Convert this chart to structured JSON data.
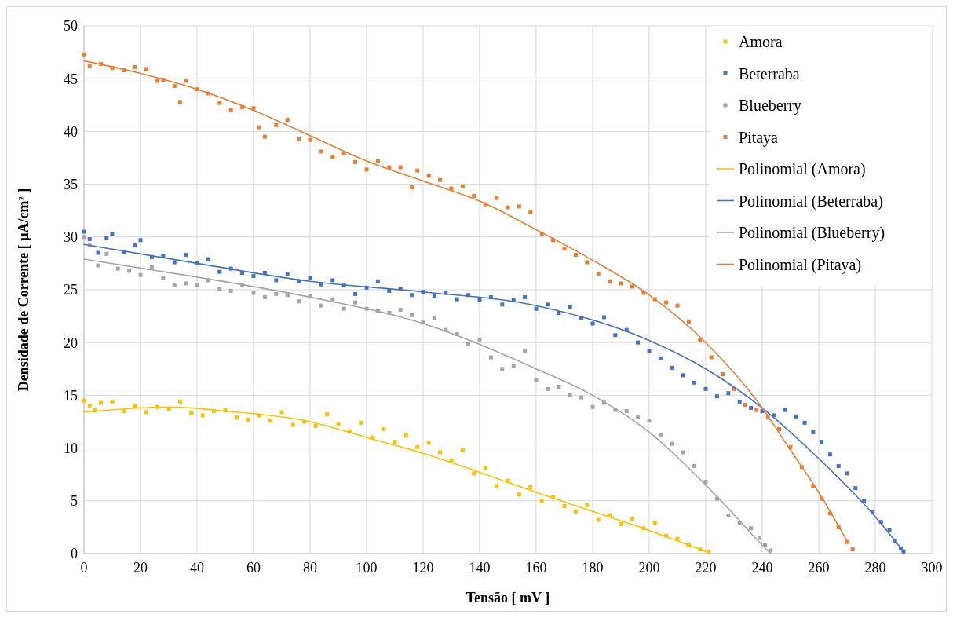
{
  "chart_data": {
    "type": "scatter",
    "xlabel": "Tensão [ mV ]",
    "ylabel": "Densidade de Corrente [ μA/cm² ]",
    "xlim": [
      0,
      300
    ],
    "ylim": [
      0,
      50
    ],
    "xticks": [
      0,
      20,
      40,
      60,
      80,
      100,
      120,
      140,
      160,
      180,
      200,
      220,
      240,
      260,
      280,
      300
    ],
    "yticks": [
      0,
      5,
      10,
      15,
      20,
      25,
      30,
      35,
      40,
      45,
      50
    ],
    "grid": true,
    "legend": "top right",
    "series": [
      {
        "name": "Amora",
        "marker": "square",
        "color": "#ffc000",
        "x": [
          0,
          2,
          4,
          6,
          10,
          14,
          18,
          22,
          26,
          30,
          34,
          38,
          42,
          46,
          50,
          54,
          58,
          62,
          66,
          70,
          74,
          78,
          82,
          86,
          90,
          94,
          98,
          102,
          106,
          110,
          114,
          118,
          122,
          126,
          130,
          134,
          138,
          142,
          146,
          150,
          154,
          158,
          162,
          166,
          170,
          174,
          178,
          182,
          186,
          190,
          194,
          198,
          202,
          206,
          210,
          214,
          218,
          221
        ],
        "values": [
          14.5,
          14.0,
          13.6,
          14.3,
          14.4,
          13.5,
          14.0,
          13.4,
          13.9,
          13.7,
          14.4,
          13.3,
          13.1,
          13.5,
          13.6,
          12.9,
          12.7,
          13.1,
          12.6,
          13.4,
          12.2,
          12.5,
          12.1,
          13.2,
          12.3,
          11.6,
          12.4,
          11.0,
          11.8,
          10.6,
          11.2,
          10.1,
          10.5,
          9.6,
          8.8,
          9.8,
          7.6,
          8.1,
          6.4,
          6.9,
          5.6,
          6.3,
          5.0,
          5.4,
          4.5,
          4.0,
          4.6,
          3.2,
          3.6,
          2.8,
          3.3,
          2.4,
          2.9,
          1.7,
          1.4,
          0.8,
          0.4,
          0.2
        ]
      },
      {
        "name": "Beterraba",
        "marker": "square",
        "color": "#4472c4",
        "x": [
          0,
          2,
          5,
          8,
          10,
          14,
          18,
          20,
          24,
          28,
          32,
          36,
          40,
          44,
          48,
          52,
          56,
          60,
          64,
          68,
          72,
          76,
          80,
          84,
          88,
          92,
          96,
          100,
          104,
          108,
          112,
          116,
          120,
          124,
          128,
          132,
          136,
          140,
          144,
          148,
          152,
          156,
          160,
          164,
          168,
          172,
          176,
          180,
          184,
          188,
          192,
          196,
          200,
          204,
          208,
          212,
          216,
          220,
          224,
          228,
          232,
          236,
          240,
          244,
          248,
          252,
          255,
          258,
          261,
          264,
          267,
          270,
          273,
          276,
          279,
          282,
          285,
          287,
          289,
          290
        ],
        "values": [
          30.5,
          29.8,
          28.5,
          29.9,
          30.3,
          28.6,
          29.2,
          29.7,
          28.1,
          28.2,
          27.6,
          28.3,
          27.5,
          27.9,
          26.7,
          27.0,
          26.6,
          26.3,
          26.6,
          25.9,
          26.5,
          25.8,
          26.1,
          25.5,
          25.9,
          25.4,
          24.6,
          25.2,
          25.8,
          24.9,
          25.1,
          24.5,
          24.8,
          24.4,
          24.7,
          24.1,
          24.5,
          24.0,
          24.3,
          23.6,
          24.0,
          24.3,
          23.2,
          23.6,
          22.8,
          23.4,
          22.3,
          21.8,
          22.4,
          20.7,
          21.2,
          20.0,
          19.2,
          18.5,
          17.6,
          16.9,
          16.2,
          15.6,
          14.9,
          15.2,
          14.4,
          13.8,
          13.5,
          13.1,
          13.6,
          13.0,
          12.4,
          11.5,
          10.6,
          9.4,
          8.3,
          7.6,
          6.2,
          5.0,
          3.9,
          3.0,
          2.2,
          1.2,
          0.5,
          0.2
        ]
      },
      {
        "name": "Blueberry",
        "marker": "square",
        "color": "#a5a5a5",
        "x": [
          0,
          2,
          5,
          8,
          12,
          16,
          20,
          24,
          28,
          32,
          36,
          40,
          44,
          48,
          52,
          56,
          60,
          64,
          68,
          72,
          76,
          80,
          84,
          88,
          92,
          96,
          100,
          104,
          108,
          112,
          116,
          120,
          124,
          128,
          132,
          136,
          140,
          144,
          148,
          152,
          156,
          160,
          164,
          168,
          172,
          176,
          180,
          184,
          188,
          192,
          196,
          200,
          204,
          208,
          212,
          216,
          220,
          224,
          228,
          232,
          236,
          239,
          241,
          243
        ],
        "values": [
          30.0,
          29.2,
          27.3,
          28.4,
          27.0,
          26.8,
          26.4,
          27.2,
          26.1,
          25.4,
          25.6,
          25.4,
          25.9,
          25.1,
          24.9,
          25.4,
          24.7,
          24.3,
          24.6,
          24.5,
          23.9,
          24.4,
          23.5,
          24.1,
          23.2,
          23.8,
          23.2,
          23.0,
          22.8,
          23.1,
          22.6,
          21.9,
          22.3,
          21.2,
          20.8,
          19.9,
          20.3,
          18.6,
          17.5,
          17.8,
          19.2,
          16.4,
          15.6,
          15.8,
          15.0,
          14.8,
          13.9,
          14.3,
          13.6,
          13.5,
          12.9,
          12.6,
          11.2,
          10.4,
          9.6,
          8.3,
          6.8,
          5.2,
          3.6,
          2.9,
          2.4,
          1.5,
          0.8,
          0.3
        ]
      },
      {
        "name": "Pitaya",
        "marker": "square",
        "color": "#ed7d31",
        "x": [
          0,
          2,
          6,
          10,
          14,
          18,
          22,
          26,
          28,
          32,
          34,
          36,
          40,
          44,
          48,
          52,
          56,
          60,
          62,
          64,
          68,
          72,
          76,
          80,
          84,
          88,
          92,
          96,
          100,
          104,
          108,
          112,
          116,
          118,
          122,
          126,
          130,
          134,
          138,
          142,
          146,
          150,
          154,
          158,
          162,
          166,
          170,
          174,
          178,
          182,
          186,
          190,
          194,
          198,
          202,
          206,
          210,
          214,
          218,
          222,
          226,
          230,
          234,
          238,
          242,
          246,
          250,
          254,
          258,
          261,
          264,
          267,
          270,
          272
        ],
        "values": [
          47.3,
          46.2,
          46.4,
          46.0,
          45.8,
          46.1,
          45.9,
          44.8,
          44.9,
          44.3,
          42.8,
          44.8,
          44.0,
          43.6,
          42.7,
          42.0,
          42.3,
          42.2,
          40.4,
          39.5,
          40.6,
          41.1,
          39.3,
          39.2,
          38.1,
          37.6,
          37.9,
          37.1,
          36.4,
          37.2,
          36.6,
          36.6,
          34.7,
          36.3,
          35.8,
          35.4,
          34.6,
          34.8,
          33.9,
          33.1,
          33.7,
          32.8,
          32.9,
          32.4,
          30.3,
          29.7,
          28.9,
          28.3,
          27.6,
          26.5,
          25.8,
          25.6,
          25.3,
          24.7,
          24.1,
          23.8,
          23.5,
          22.0,
          20.2,
          18.6,
          17.0,
          15.6,
          14.1,
          13.6,
          13.0,
          11.8,
          10.1,
          8.2,
          6.4,
          5.2,
          3.8,
          2.5,
          1.1,
          0.4
        ]
      },
      {
        "name": "Polinomial (Amora)",
        "type": "line",
        "color": "#ffc000",
        "x": [
          0,
          30,
          50,
          80,
          100,
          120,
          140,
          160,
          180,
          200,
          210,
          220
        ],
        "values": [
          13.4,
          13.9,
          13.5,
          12.5,
          11.0,
          9.5,
          7.7,
          5.8,
          4.0,
          2.2,
          1.2,
          0.2
        ]
      },
      {
        "name": "Polinomial (Beterraba)",
        "type": "line",
        "color": "#4472c4",
        "x": [
          0,
          40,
          80,
          120,
          160,
          200,
          220,
          240,
          260,
          280,
          290
        ],
        "values": [
          29.3,
          27.5,
          25.8,
          24.8,
          23.5,
          20.2,
          17.5,
          13.8,
          9.0,
          3.5,
          0.2
        ]
      },
      {
        "name": "Polinomial (Blueberry)",
        "type": "line",
        "color": "#a5a5a5",
        "x": [
          0,
          40,
          80,
          120,
          160,
          180,
          200,
          220,
          230,
          240,
          243
        ],
        "values": [
          27.9,
          26.2,
          24.3,
          21.8,
          17.5,
          15.0,
          11.5,
          6.5,
          3.7,
          0.8,
          0
        ]
      },
      {
        "name": "Polinomial (Pitaya)",
        "type": "line",
        "color": "#ed7d31",
        "x": [
          0,
          20,
          40,
          60,
          80,
          100,
          120,
          140,
          160,
          180,
          200,
          220,
          240,
          250,
          260,
          270
        ],
        "values": [
          46.7,
          45.5,
          44.0,
          42.0,
          39.6,
          37.2,
          35.3,
          33.4,
          30.7,
          27.8,
          24.5,
          20.0,
          13.8,
          9.8,
          5.8,
          1.2
        ]
      }
    ]
  }
}
